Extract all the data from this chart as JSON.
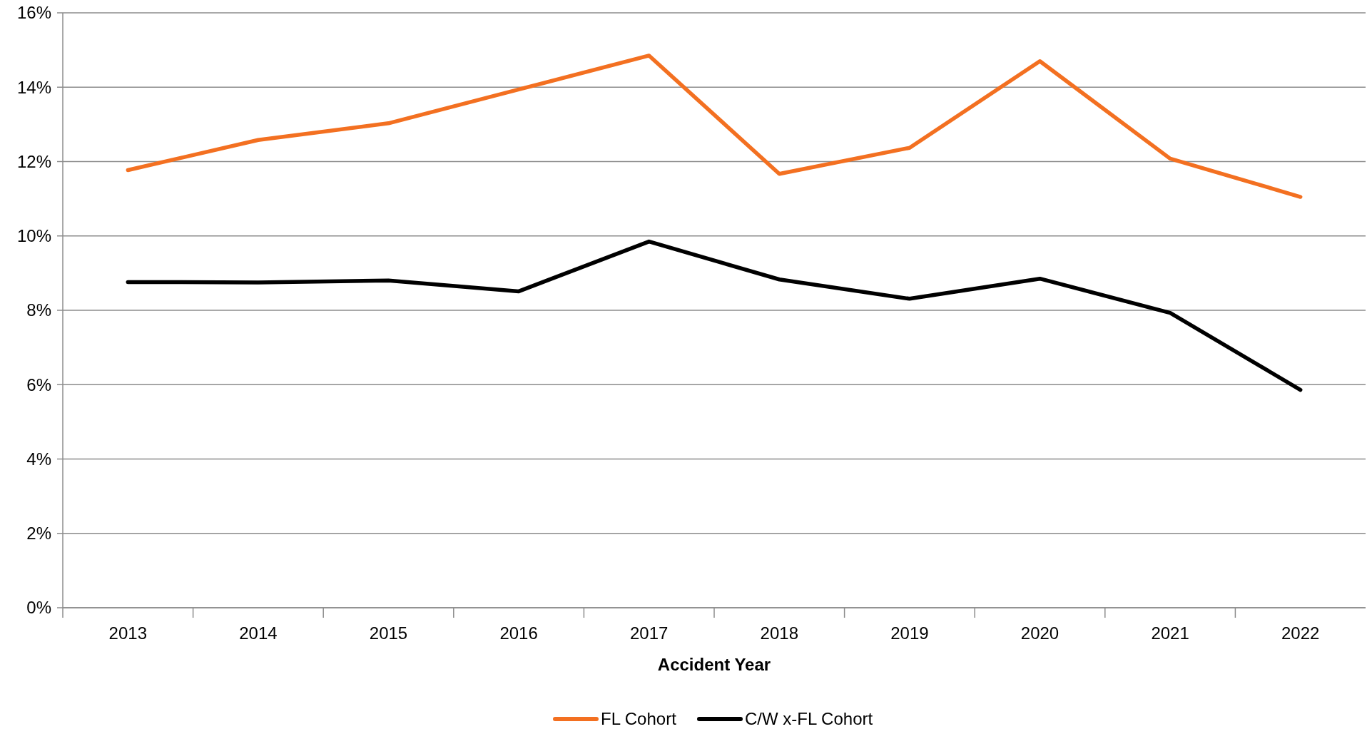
{
  "chart_data": {
    "type": "line",
    "xlabel": "Accident Year",
    "categories": [
      "2013",
      "2014",
      "2015",
      "2016",
      "2017",
      "2018",
      "2019",
      "2020",
      "2021",
      "2022"
    ],
    "series": [
      {
        "name": "FL Cohort",
        "color": "#f37021",
        "values": [
          11.77,
          12.58,
          13.03,
          13.94,
          14.85,
          11.67,
          12.37,
          14.7,
          12.08,
          11.05
        ]
      },
      {
        "name": "C/W x-FL Cohort",
        "color": "#000000",
        "values": [
          8.76,
          8.75,
          8.8,
          8.51,
          9.85,
          8.83,
          8.31,
          8.85,
          7.93,
          5.86
        ]
      }
    ],
    "ylim": [
      0,
      16
    ],
    "yticks": [
      {
        "value": 0,
        "label": "0%"
      },
      {
        "value": 2,
        "label": "2%"
      },
      {
        "value": 4,
        "label": "4%"
      },
      {
        "value": 6,
        "label": "6%"
      },
      {
        "value": 8,
        "label": "8%"
      },
      {
        "value": 10,
        "label": "10%"
      },
      {
        "value": 12,
        "label": "12%"
      },
      {
        "value": 14,
        "label": "14%"
      },
      {
        "value": 16,
        "label": "16%"
      }
    ],
    "grid": "y",
    "legend": "bottom"
  }
}
